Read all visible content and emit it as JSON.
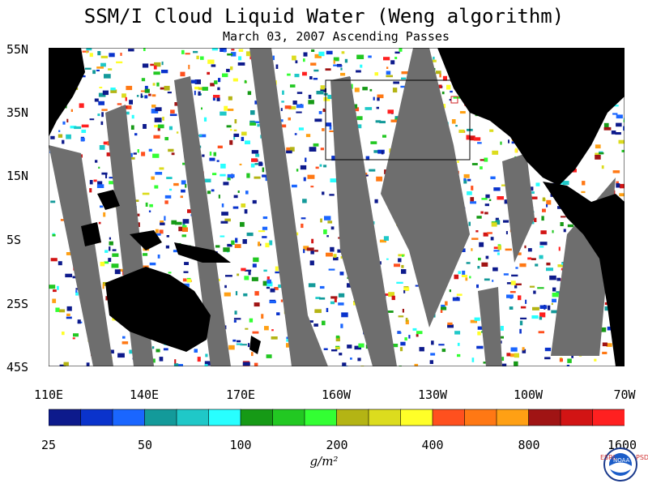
{
  "title": "SSM/I Cloud Liquid Water (Weng algorithm)",
  "subtitle": "March 03, 2007  Ascending Passes",
  "lat_labels": [
    "55N",
    "35N",
    "15N",
    "5S",
    "25S",
    "45S"
  ],
  "lon_labels": [
    "110E",
    "140E",
    "170E",
    "160W",
    "130W",
    "100W",
    "70W"
  ],
  "colorbar": {
    "colors": [
      "#0d1a8c",
      "#0a33cc",
      "#1a66ff",
      "#139a9a",
      "#1fc8c8",
      "#28ffff",
      "#169a16",
      "#22c822",
      "#33ff33",
      "#b4b414",
      "#dcdc1e",
      "#ffff28",
      "#ff501e",
      "#ff7814",
      "#ffa014",
      "#a01414",
      "#d21414",
      "#ff2020"
    ],
    "tick_labels": [
      "25",
      "50",
      "100",
      "200",
      "400",
      "800",
      "1600"
    ]
  },
  "units": "g/m²",
  "logo": {
    "center_text": "NOAA",
    "left_text": "ESRL",
    "right_text": "PSD",
    "colors": {
      "ring": "#1a3a8c",
      "text": "#d03030"
    }
  },
  "chart_data": {
    "type": "heatmap",
    "title": "SSM/I Cloud Liquid Water (Weng algorithm)",
    "subtitle": "March 03, 2007  Ascending Passes",
    "region": {
      "lon_range": [
        "110E",
        "70W"
      ],
      "lat_range": [
        "45S",
        "55N"
      ]
    },
    "colorbar_units": "g/m²",
    "colorbar_levels": [
      25,
      50,
      100,
      200,
      400,
      800,
      1600
    ],
    "land_color": "#000000",
    "no_data_color": "#6e6e6e",
    "annotations": [
      "box over northeast Pacific 160W–125W, ~20N–42N"
    ]
  }
}
